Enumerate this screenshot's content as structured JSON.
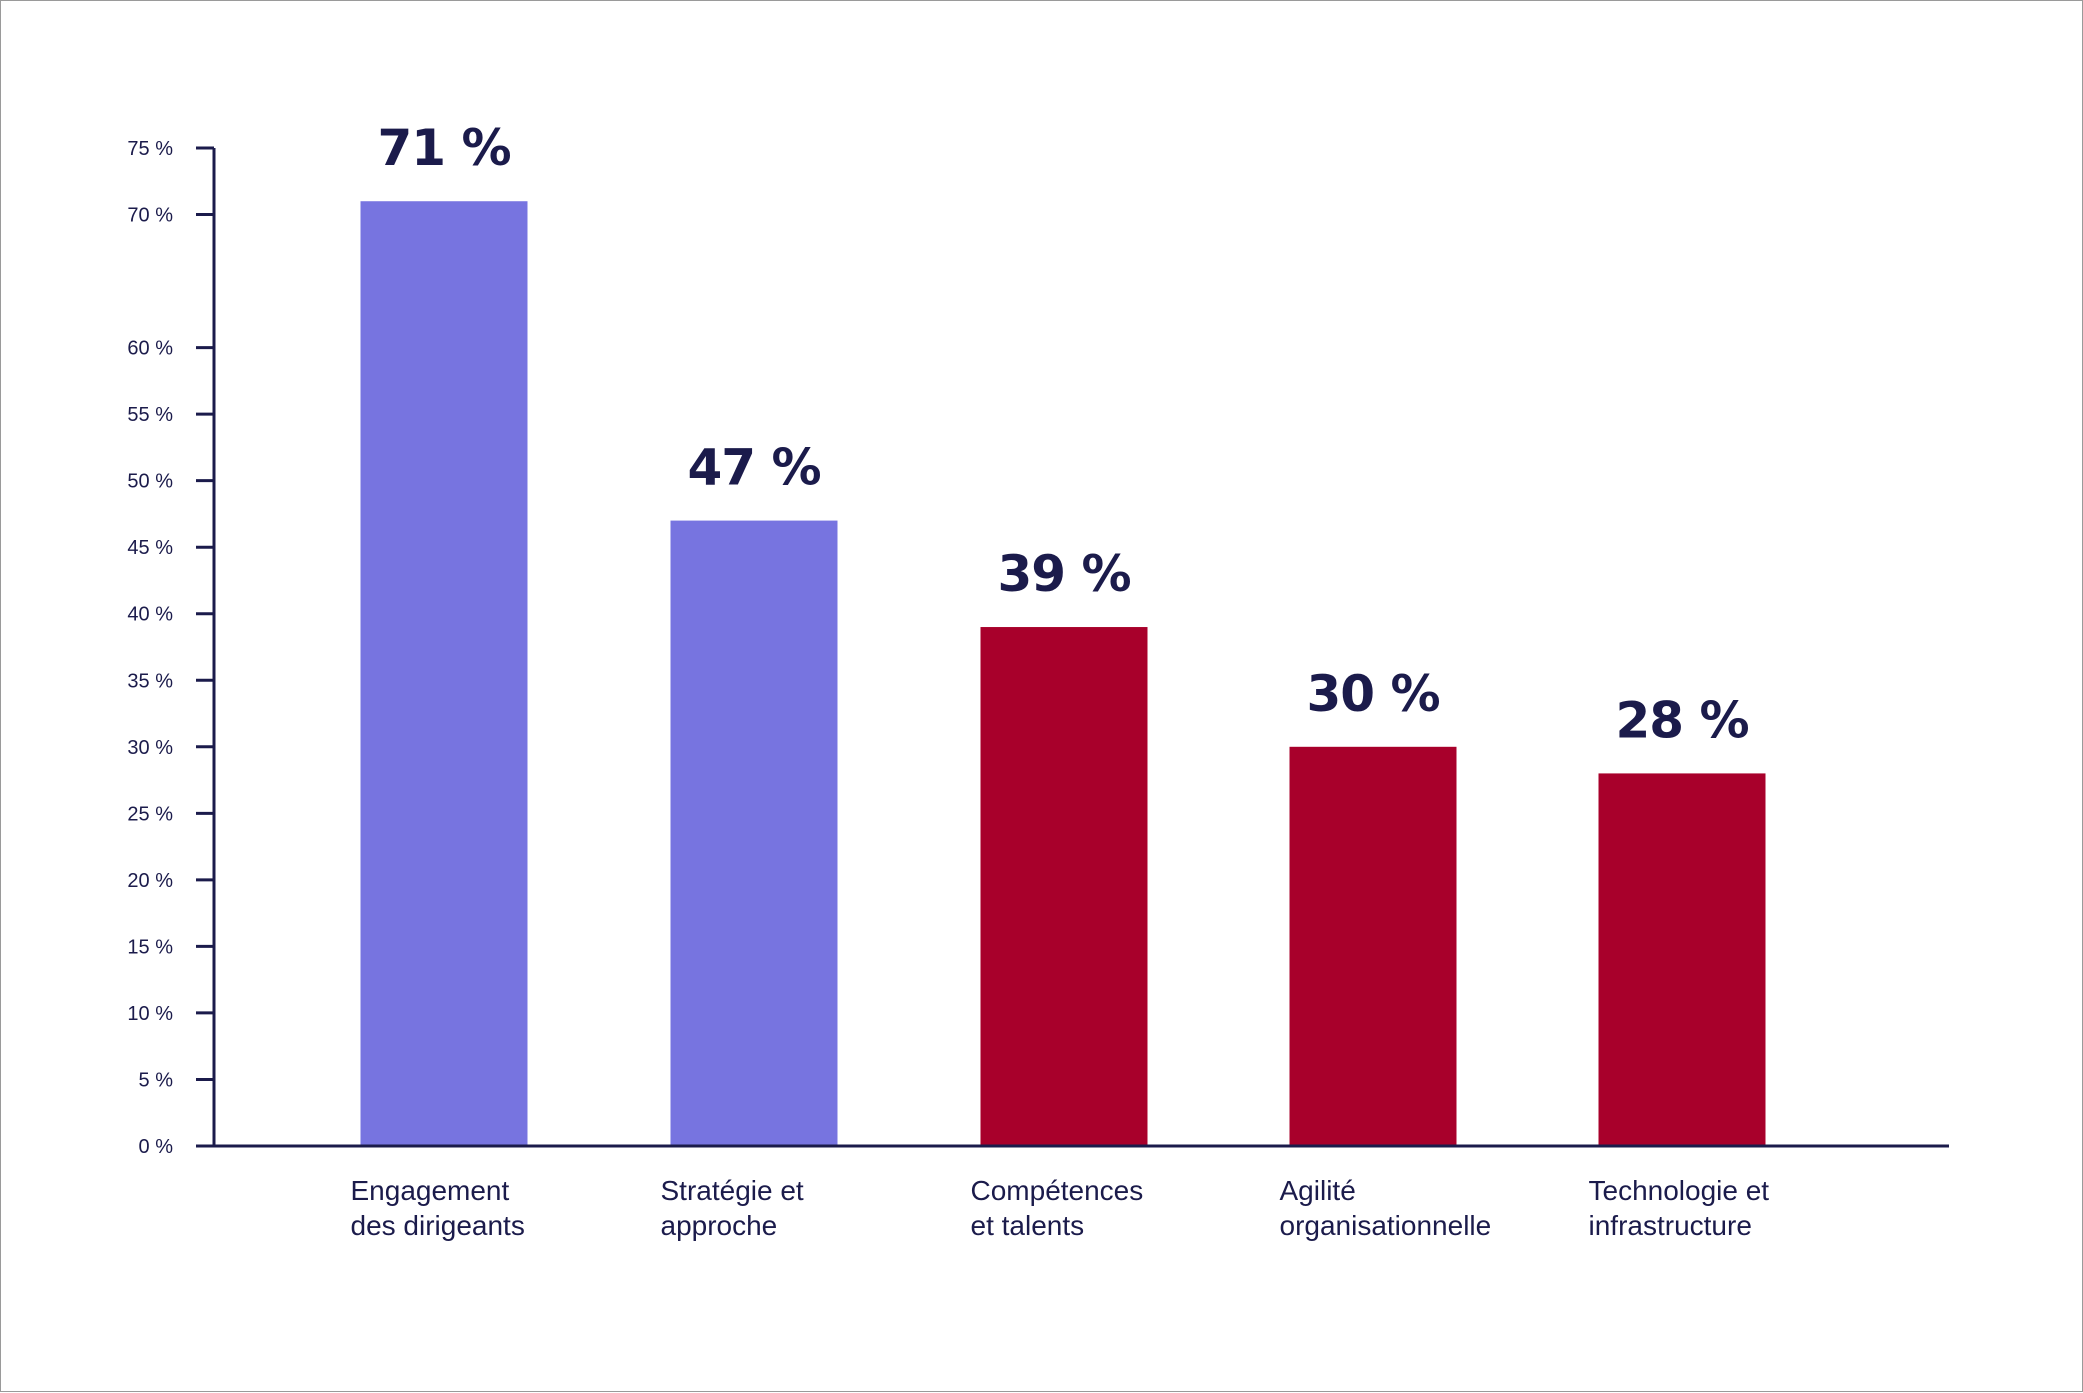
{
  "chart_data": {
    "type": "bar",
    "title": "",
    "xlabel": "",
    "ylabel": "",
    "ylim": [
      0,
      75
    ],
    "yticks": [
      0,
      5,
      10,
      15,
      20,
      25,
      30,
      35,
      40,
      45,
      50,
      55,
      60,
      70,
      75
    ],
    "ytick_labels": [
      "0 %",
      "5 %",
      "10 %",
      "15 %",
      "20 %",
      "25 %",
      "30 %",
      "35 %",
      "40 %",
      "45 %",
      "50 %",
      "55 %",
      "60 %",
      "70 %",
      "75 %"
    ],
    "categories": [
      [
        "Engagement",
        "des dirigeants"
      ],
      [
        "Stratégie et",
        "approche"
      ],
      [
        "Compétences",
        "et talents"
      ],
      [
        "Agilité",
        "organisationnelle"
      ],
      [
        "Technologie et",
        "infrastructure"
      ]
    ],
    "values": [
      71,
      47,
      39,
      30,
      28
    ],
    "value_labels": [
      "71 %",
      "47 %",
      "39 %",
      "30 %",
      "28 %"
    ],
    "bar_colors": [
      "#7774e0",
      "#7774e0",
      "#a8002b",
      "#a8002b",
      "#a8002b"
    ],
    "axis_color": "#1b1b4b",
    "grid": false,
    "legend": "none"
  }
}
